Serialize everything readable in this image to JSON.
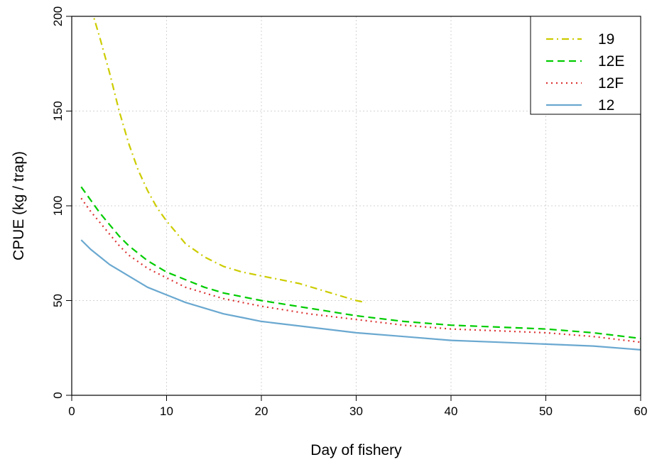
{
  "chart_data": {
    "type": "line",
    "title": "",
    "xlabel": "Day of fishery",
    "ylabel": "CPUE (kg / trap)",
    "xlim": [
      0,
      60
    ],
    "ylim": [
      0,
      200
    ],
    "x_ticks": [
      0,
      10,
      20,
      30,
      40,
      50,
      60
    ],
    "y_ticks": [
      0,
      50,
      100,
      150,
      200
    ],
    "grid": true,
    "legend_position": "top-right",
    "series": [
      {
        "name": "19",
        "color": "#cccc00",
        "dash": "dashdot",
        "x": [
          1,
          2,
          3,
          4,
          5,
          6,
          7,
          8,
          9,
          10,
          12,
          14,
          16,
          18,
          20,
          22,
          24,
          26,
          28,
          30,
          31
        ],
        "y": [
          220,
          205,
          188,
          170,
          150,
          133,
          119,
          108,
          99,
          92,
          80,
          73,
          68,
          65,
          63,
          61,
          59,
          56,
          53,
          50,
          49
        ]
      },
      {
        "name": "12E",
        "color": "#00cc00",
        "dash": "dashed",
        "x": [
          1,
          2,
          3,
          4,
          5,
          6,
          8,
          10,
          12,
          14,
          16,
          18,
          20,
          25,
          30,
          35,
          40,
          45,
          50,
          55,
          60
        ],
        "y": [
          110,
          103,
          96,
          90,
          84,
          79,
          71,
          65,
          61,
          57,
          54,
          52,
          50,
          46,
          42,
          39,
          37,
          36,
          35,
          33,
          30
        ]
      },
      {
        "name": "12F",
        "color": "#dd3333",
        "dash": "dotted",
        "x": [
          1,
          2,
          3,
          4,
          5,
          6,
          8,
          10,
          12,
          14,
          16,
          18,
          20,
          25,
          30,
          35,
          40,
          45,
          50,
          55,
          60
        ],
        "y": [
          104,
          97,
          91,
          85,
          79,
          74,
          67,
          62,
          57,
          54,
          51,
          49,
          47,
          43,
          40,
          37,
          35,
          34,
          33,
          31,
          28
        ]
      },
      {
        "name": "12",
        "color": "#6aa8d0",
        "dash": "solid",
        "x": [
          1,
          2,
          3,
          4,
          5,
          6,
          8,
          10,
          12,
          14,
          16,
          18,
          20,
          25,
          30,
          35,
          40,
          45,
          50,
          55,
          60
        ],
        "y": [
          82,
          77,
          73,
          69,
          66,
          63,
          57,
          53,
          49,
          46,
          43,
          41,
          39,
          36,
          33,
          31,
          29,
          28,
          27,
          26,
          24
        ]
      }
    ]
  }
}
